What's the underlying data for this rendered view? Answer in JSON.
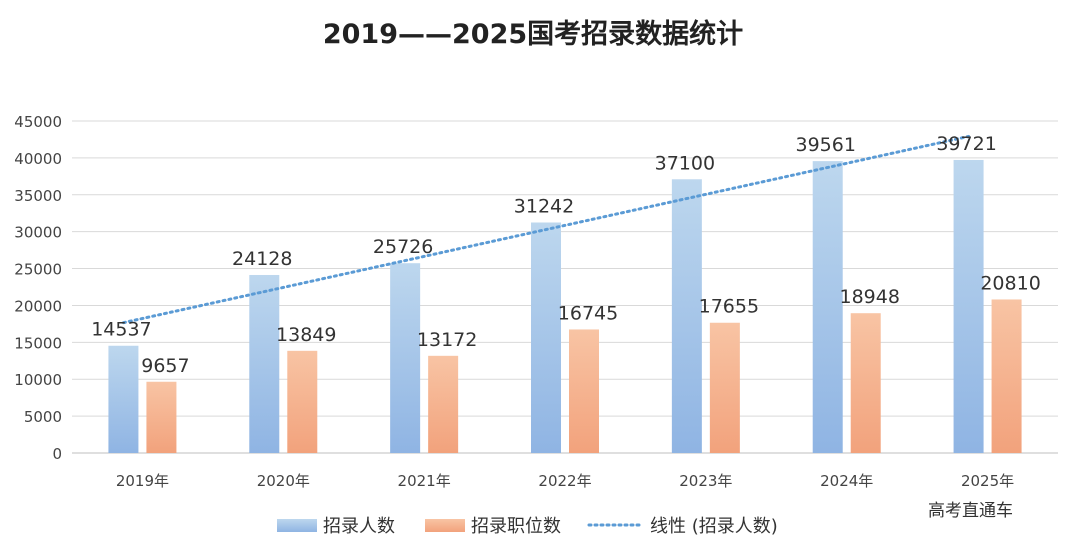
{
  "chart_data": {
    "type": "bar",
    "title": "2019——2025国考招录数据统计",
    "categories": [
      "2019年",
      "2020年",
      "2021年",
      "2022年",
      "2023年",
      "2024年",
      "2025年"
    ],
    "series": [
      {
        "name": "招录人数",
        "values": [
          14537,
          24128,
          25726,
          31242,
          37100,
          39561,
          39721
        ],
        "color": "#9dc3e6"
      },
      {
        "name": "招录职位数",
        "values": [
          9657,
          13849,
          13172,
          16745,
          17655,
          18948,
          20810
        ],
        "color": "#f4b183"
      }
    ],
    "trendline": {
      "name": "线性 (招录人数)",
      "series": "招录人数",
      "type": "linear",
      "color": "#5b9bd5"
    },
    "ylim": [
      0,
      45000
    ],
    "yticks": [
      0,
      5000,
      10000,
      15000,
      20000,
      25000,
      30000,
      35000,
      40000,
      45000
    ],
    "xlabel": "",
    "ylabel": "",
    "grid": true,
    "legend": "bottom"
  },
  "watermark": "高考直通车"
}
